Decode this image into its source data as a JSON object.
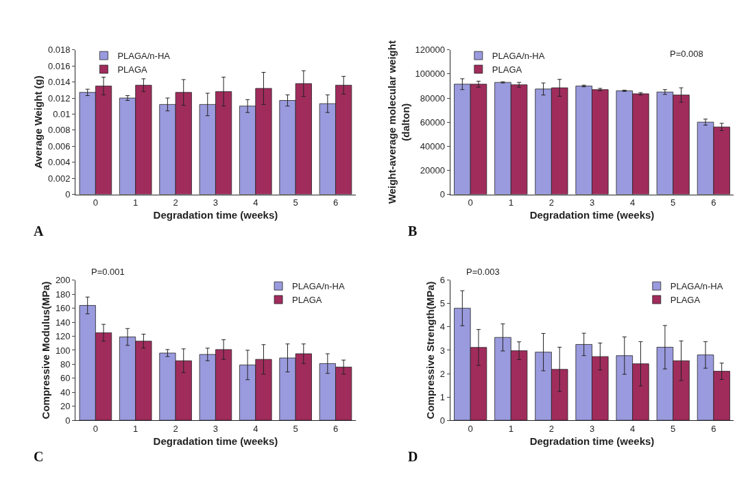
{
  "chart_data": [
    {
      "type": "bar",
      "xlabel": "Degradation time (weeks)",
      "ylabel": "Average Weight (g)",
      "categories": [
        "0",
        "1",
        "2",
        "3",
        "4",
        "5",
        "6"
      ],
      "ylim": [
        0,
        0.018
      ],
      "yticks": [
        0,
        0.002,
        0.004,
        0.006,
        0.008,
        0.01,
        0.012,
        0.014,
        0.016,
        0.018
      ],
      "legend": "top left",
      "annotations": [
        "A"
      ],
      "series": [
        {
          "name": "PLAGA/n-HA",
          "color": "#9a9ade",
          "values": [
            0.0127,
            0.012,
            0.0112,
            0.0112,
            0.011,
            0.0117,
            0.0113
          ],
          "errors": [
            0.0004,
            0.0003,
            0.0008,
            0.0014,
            0.0008,
            0.0007,
            0.0011
          ]
        },
        {
          "name": "PLAGA",
          "color": "#a02c5c",
          "values": [
            0.0135,
            0.0136,
            0.0127,
            0.0128,
            0.0132,
            0.0138,
            0.0136
          ],
          "errors": [
            0.0011,
            0.0008,
            0.0016,
            0.0018,
            0.002,
            0.0016,
            0.0011
          ]
        }
      ]
    },
    {
      "type": "bar",
      "xlabel": "Degradation time (weeks)",
      "ylabel": "Weight-average molecular weight\n(dalton)",
      "categories": [
        "0",
        "1",
        "2",
        "3",
        "4",
        "5",
        "6"
      ],
      "ylim": [
        0,
        120000
      ],
      "yticks": [
        0,
        20000,
        40000,
        60000,
        80000,
        100000,
        120000
      ],
      "legend": "top left",
      "annotations": [
        "B",
        "P=0.008"
      ],
      "series": [
        {
          "name": "PLAGA/n-HA",
          "color": "#9a9ade",
          "values": [
            91500,
            93000,
            87500,
            90000,
            86000,
            85000,
            60000
          ],
          "errors": [
            4500,
            500,
            5000,
            700,
            500,
            2000,
            2500
          ]
        },
        {
          "name": "PLAGA",
          "color": "#a02c5c",
          "values": [
            91500,
            91000,
            88500,
            87000,
            83500,
            82500,
            56000
          ],
          "errors": [
            2500,
            2000,
            7000,
            1000,
            1000,
            6000,
            3000
          ]
        }
      ]
    },
    {
      "type": "bar",
      "xlabel": "Degradation time (weeks)",
      "ylabel": "Compressive Modulus(MPa)",
      "categories": [
        "0",
        "1",
        "2",
        "3",
        "4",
        "5",
        "6"
      ],
      "ylim": [
        0,
        200
      ],
      "yticks": [
        0,
        20,
        40,
        60,
        80,
        100,
        120,
        140,
        160,
        180,
        200
      ],
      "legend": "top right",
      "annotations": [
        "C",
        "P=0.001"
      ],
      "series": [
        {
          "name": "PLAGA/n-HA",
          "color": "#9a9ade",
          "values": [
            164,
            119,
            96,
            94,
            79,
            89,
            81
          ],
          "errors": [
            12,
            12,
            5,
            9,
            21,
            20,
            14
          ]
        },
        {
          "name": "PLAGA",
          "color": "#a02c5c",
          "values": [
            125,
            113,
            85,
            101,
            87,
            95,
            76
          ],
          "errors": [
            12,
            10,
            17,
            14,
            21,
            14,
            10
          ]
        }
      ]
    },
    {
      "type": "bar",
      "xlabel": "Degradation time (weeks)",
      "ylabel": "Compressive Strength(MPa)",
      "categories": [
        "0",
        "1",
        "2",
        "3",
        "4",
        "5",
        "6"
      ],
      "ylim": [
        0,
        6
      ],
      "yticks": [
        0,
        1,
        2,
        3,
        4,
        5,
        6
      ],
      "legend": "top right",
      "annotations": [
        "D",
        "P=0.003"
      ],
      "series": [
        {
          "name": "PLAGA/n-HA",
          "color": "#9a9ade",
          "values": [
            4.8,
            3.55,
            2.92,
            3.25,
            2.77,
            3.13,
            2.8
          ],
          "errors": [
            0.75,
            0.58,
            0.8,
            0.48,
            0.8,
            0.93,
            0.57
          ]
        },
        {
          "name": "PLAGA",
          "color": "#a02c5c",
          "values": [
            3.12,
            2.98,
            2.18,
            2.73,
            2.42,
            2.55,
            2.1
          ],
          "errors": [
            0.77,
            0.38,
            0.95,
            0.58,
            0.95,
            0.85,
            0.35
          ]
        }
      ]
    }
  ]
}
